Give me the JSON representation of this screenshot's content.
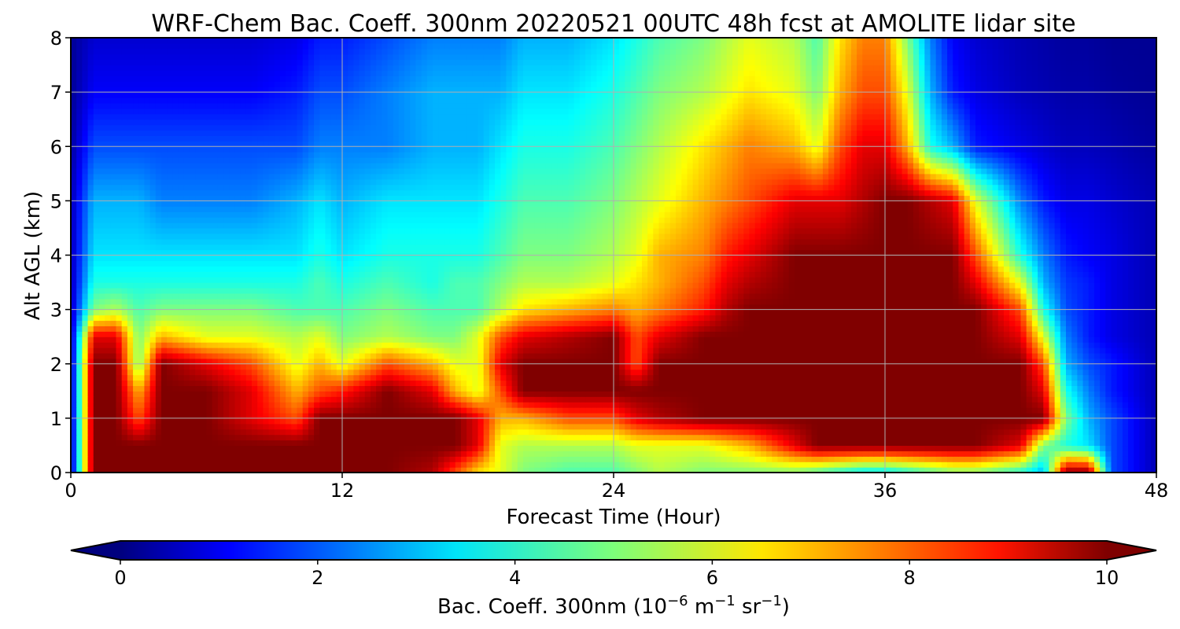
{
  "chart_data": {
    "type": "heatmap",
    "title": "WRF-Chem Bac. Coeff. 300nm  20220521 00UTC 48h fcst at AMOLITE lidar site",
    "xlabel": "Forecast Time (Hour)",
    "ylabel": "Alt AGL (km)",
    "xlim": [
      0,
      48
    ],
    "ylim": [
      0,
      8
    ],
    "xticks": [
      "0",
      "12",
      "24",
      "36",
      "48"
    ],
    "yticks": [
      "0",
      "1",
      "2",
      "3",
      "4",
      "5",
      "6",
      "7",
      "8"
    ],
    "grid": true,
    "colorbar": {
      "label_main": "Bac. Coeff. 300nm  (10",
      "label_exp1": "−6",
      "label_mid": " m",
      "label_exp2": "−1",
      "label_mid2": " sr",
      "label_exp3": "−1",
      "label_end": ")",
      "range": [
        0,
        10
      ],
      "ticks": [
        "0",
        "2",
        "4",
        "6",
        "8",
        "10"
      ],
      "extend": "both",
      "colormap": "jet"
    },
    "x_hours": [
      0,
      1,
      2,
      3,
      4,
      6,
      8,
      10,
      11,
      12,
      14,
      16,
      17,
      18,
      19,
      20,
      22,
      24,
      25,
      26,
      28,
      29,
      30,
      32,
      33,
      34,
      35,
      36,
      37,
      38,
      39,
      40,
      42,
      43,
      44,
      45,
      46,
      48
    ],
    "z_km": [
      0,
      0.5,
      1,
      1.5,
      2,
      2.5,
      3,
      3.5,
      4,
      5,
      6,
      7,
      8
    ],
    "values": [
      [
        0.5,
        10,
        10,
        10,
        10,
        10,
        10,
        10,
        10,
        10,
        10,
        9.5,
        8,
        6.5,
        6,
        5,
        4.5,
        4.5,
        5,
        5.5,
        5,
        5,
        5,
        5,
        4.5,
        4,
        3.5,
        3.5,
        4,
        4.5,
        5,
        5,
        4,
        3,
        10,
        10,
        2,
        0.5
      ],
      [
        0.5,
        10,
        10,
        10,
        10,
        10,
        10,
        10,
        10,
        10,
        10,
        10,
        10,
        9,
        6,
        5.5,
        5.5,
        5.5,
        6,
        6,
        6,
        6.5,
        7,
        9,
        10,
        10,
        10,
        10,
        10,
        10,
        10,
        10,
        9,
        5,
        4,
        3.5,
        2,
        0.5
      ],
      [
        0.5,
        10,
        10,
        8,
        10,
        10,
        9,
        8,
        10,
        10,
        10,
        10,
        10,
        9,
        7,
        7,
        8,
        8,
        9,
        9.5,
        10,
        10,
        10,
        10,
        10,
        10,
        10,
        10,
        10,
        10,
        10,
        10,
        10,
        10,
        5,
        3,
        2,
        0.5
      ],
      [
        0.5,
        10,
        10,
        7,
        10,
        10,
        9,
        7,
        8,
        8.5,
        10,
        9,
        7,
        6,
        8,
        10,
        10,
        10,
        10,
        10,
        10,
        10,
        10,
        10,
        10,
        10,
        10,
        10,
        10,
        10,
        10,
        10,
        10,
        9,
        4,
        2.5,
        1.5,
        0.5
      ],
      [
        0.5,
        10,
        10,
        5,
        10,
        9,
        8,
        6,
        7,
        6,
        8,
        7,
        6,
        6,
        9,
        10,
        10,
        10,
        8,
        10,
        10,
        10,
        10,
        10,
        10,
        10,
        10,
        10,
        10,
        10,
        10,
        10,
        10,
        8,
        3,
        2,
        1.5,
        0.5
      ],
      [
        0.5,
        9,
        9,
        5,
        7,
        6,
        6,
        5.5,
        6,
        5,
        5.5,
        5,
        5,
        6,
        8,
        9,
        9.5,
        10,
        8,
        9,
        10,
        10,
        10,
        10,
        10,
        10,
        10,
        10,
        10,
        10,
        10,
        10,
        9,
        6,
        2.5,
        1.5,
        1,
        0.5
      ],
      [
        0.5,
        5,
        5.5,
        4.5,
        5,
        5,
        5,
        4.5,
        4.5,
        4.5,
        5,
        4.5,
        4.5,
        4.5,
        5.5,
        6.5,
        7,
        7.5,
        7,
        7.5,
        8.5,
        9.5,
        10,
        10,
        10,
        10,
        10,
        10,
        10,
        10,
        10,
        10,
        8,
        4,
        2,
        1.5,
        1,
        0.5
      ],
      [
        0.5,
        4,
        4,
        4,
        4,
        4,
        4,
        4,
        4.5,
        4,
        4.5,
        4,
        4.5,
        4.5,
        5,
        5.5,
        5.5,
        6,
        6.5,
        7,
        8,
        9,
        9.5,
        10,
        10,
        10,
        10,
        10,
        10,
        10,
        10,
        9,
        6,
        3,
        1.8,
        1.5,
        1,
        0.5
      ],
      [
        0.5,
        3.5,
        3.5,
        3.5,
        3.5,
        3.5,
        3.5,
        3.5,
        4,
        3.5,
        4,
        4,
        4,
        4,
        4.5,
        5,
        5,
        5.5,
        6,
        7,
        7.5,
        8.5,
        9,
        10,
        10,
        10,
        10,
        10,
        10,
        10,
        10,
        8,
        4,
        2.5,
        1.5,
        1.2,
        1,
        0.5
      ],
      [
        0.5,
        3,
        3,
        3,
        2.5,
        2.5,
        2.5,
        3,
        3.5,
        3,
        3.5,
        3.5,
        3.5,
        3.5,
        4,
        4.5,
        4.5,
        5,
        5.5,
        6,
        7,
        7.5,
        8,
        9,
        9,
        9,
        9.5,
        10,
        10,
        9.5,
        9,
        6,
        2.5,
        1.5,
        1,
        1,
        0.8,
        0.5
      ],
      [
        0.3,
        2,
        2,
        2,
        2,
        2,
        2,
        2,
        2.5,
        2.5,
        2.5,
        3,
        3,
        3,
        3.5,
        4,
        4,
        4.5,
        5,
        5.5,
        6.5,
        7,
        7.5,
        7,
        6,
        8,
        9,
        9,
        7,
        4,
        3,
        1.5,
        1,
        0.8,
        0.6,
        0.6,
        0.5,
        0.3
      ],
      [
        0.2,
        1.2,
        1.2,
        1.2,
        1.2,
        1.2,
        1.2,
        1.5,
        2,
        2,
        2.5,
        3,
        3,
        3,
        3,
        3.5,
        3.5,
        4,
        4.5,
        5,
        5.5,
        6,
        6.5,
        6,
        5,
        7,
        8,
        8,
        6,
        3,
        1.5,
        1,
        0.6,
        0.5,
        0.4,
        0.4,
        0.3,
        0.2
      ],
      [
        0.2,
        0.8,
        0.8,
        0.8,
        0.8,
        0.8,
        0.8,
        1,
        1.5,
        1.5,
        2,
        2.5,
        2.5,
        2.5,
        2.5,
        3,
        3,
        3.5,
        4,
        4.5,
        5,
        5.5,
        6,
        5.5,
        4.5,
        6.5,
        7.5,
        7.5,
        5,
        2.5,
        1.2,
        0.8,
        0.5,
        0.4,
        0.3,
        0.3,
        0.2,
        0.2
      ]
    ]
  }
}
